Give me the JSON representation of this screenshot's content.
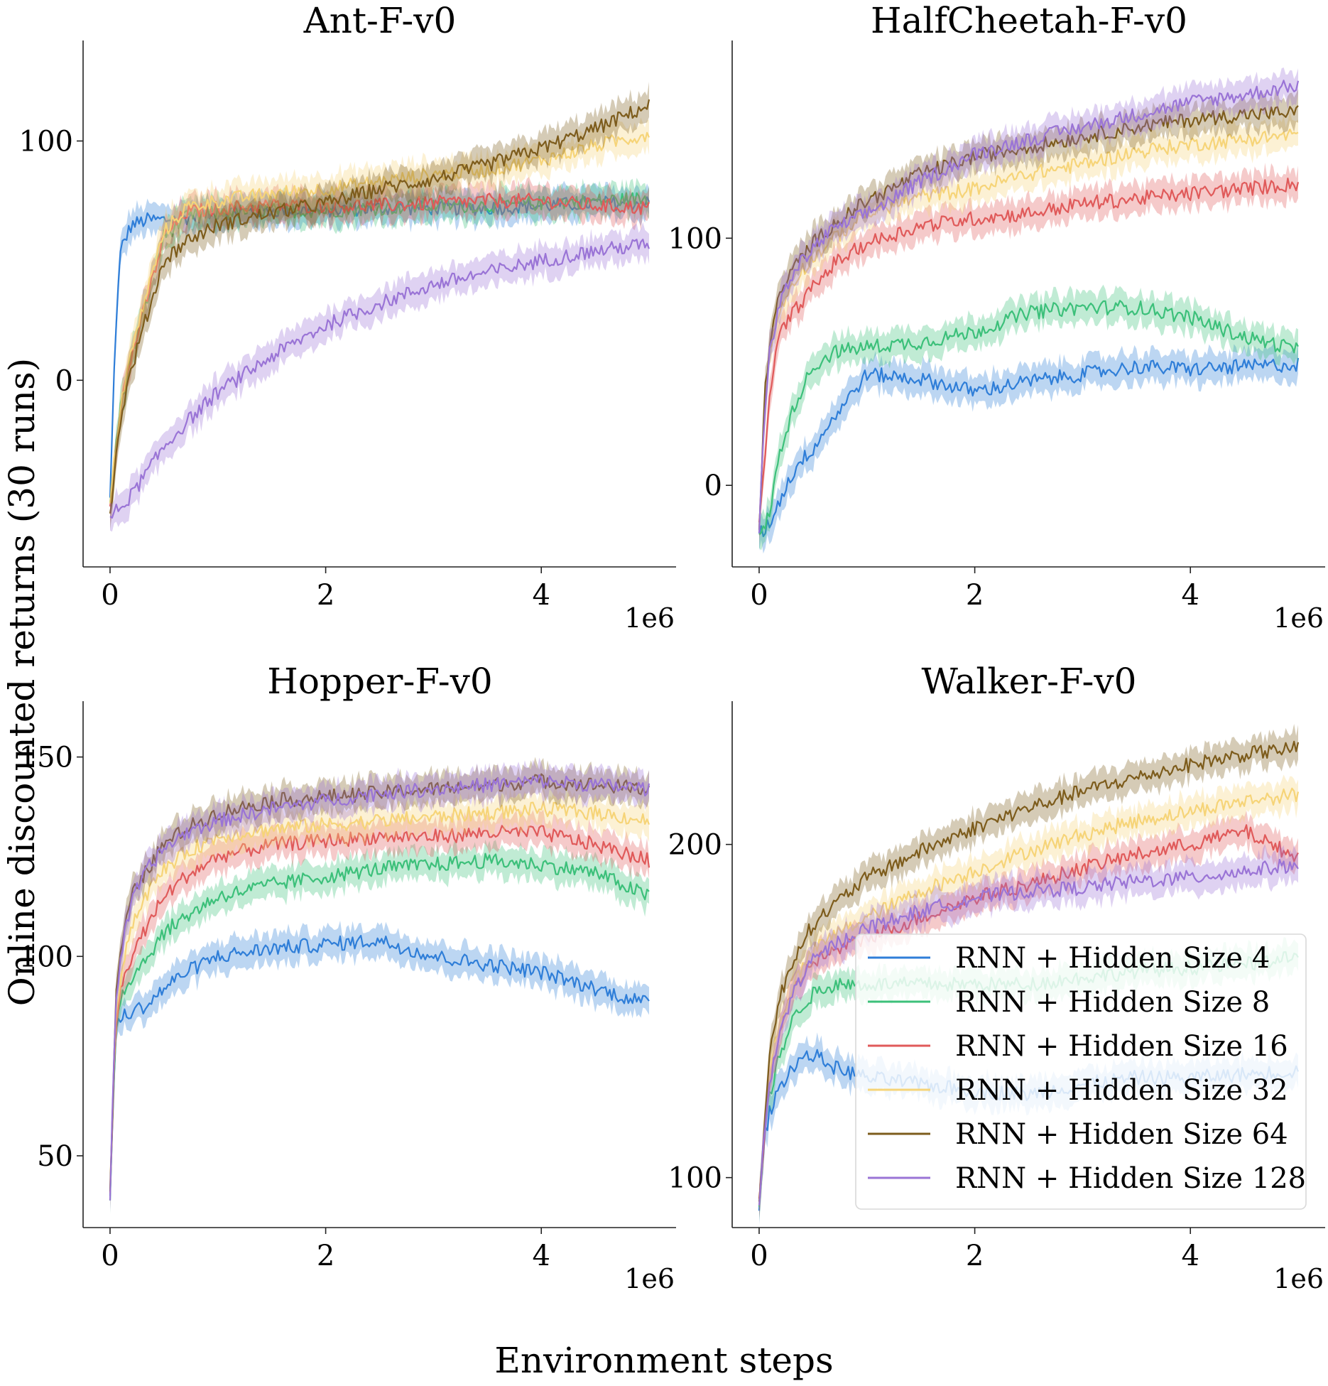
{
  "figure": {
    "xlabel": "Environment steps",
    "ylabel": "Online discounted returns (30 runs)"
  },
  "series_styles": [
    {
      "name": "RNN + Hidden Size 4",
      "color": "#2f7ed8"
    },
    {
      "name": "RNN + Hidden Size 8",
      "color": "#3cc07a"
    },
    {
      "name": "RNN + Hidden Size 16",
      "color": "#e05a5a"
    },
    {
      "name": "RNN + Hidden Size 32",
      "color": "#f6d478"
    },
    {
      "name": "RNN + Hidden Size 64",
      "color": "#7d5c1c"
    },
    {
      "name": "RNN + Hidden Size 128",
      "color": "#9a74d6"
    }
  ],
  "chart_data": [
    {
      "type": "line",
      "title": "Ant-F-v0",
      "xlabel": "",
      "ylabel": "",
      "x_multiplier_label": "1e6",
      "xlim": [
        -0.25,
        5.25
      ],
      "ylim": [
        -78,
        142
      ],
      "xticks": [
        0,
        2,
        4
      ],
      "yticks": [
        0,
        100
      ],
      "x": [
        0,
        0.05,
        0.1,
        0.2,
        0.35,
        0.5,
        0.7,
        1,
        1.5,
        2,
        2.5,
        3,
        3.5,
        4,
        4.5,
        5
      ],
      "series": [
        {
          "name": "RNN + Hidden Size 4",
          "values": [
            -50,
            20,
            55,
            65,
            67,
            67,
            68,
            70,
            71,
            71,
            72,
            72,
            72,
            73,
            74,
            74
          ]
        },
        {
          "name": "RNN + Hidden Size 8",
          "values": [
            -52,
            -30,
            -10,
            10,
            35,
            60,
            68,
            70,
            71,
            71,
            72,
            73,
            73,
            74,
            75,
            76
          ]
        },
        {
          "name": "RNN + Hidden Size 16",
          "values": [
            -52,
            -30,
            -10,
            10,
            35,
            60,
            70,
            72,
            73,
            73,
            73,
            74,
            75,
            75,
            73,
            72
          ]
        },
        {
          "name": "RNN + Hidden Size 32",
          "values": [
            -52,
            -30,
            -10,
            12,
            38,
            62,
            72,
            75,
            78,
            80,
            83,
            86,
            88,
            92,
            98,
            103
          ]
        },
        {
          "name": "RNN + Hidden Size 64",
          "values": [
            -55,
            -35,
            -15,
            5,
            28,
            50,
            58,
            65,
            70,
            74,
            80,
            84,
            90,
            97,
            105,
            115
          ]
        },
        {
          "name": "RNN + Hidden Size 128",
          "values": [
            -58,
            -55,
            -53,
            -48,
            -38,
            -28,
            -18,
            -5,
            10,
            23,
            32,
            40,
            45,
            50,
            54,
            57
          ]
        }
      ]
    },
    {
      "type": "line",
      "title": "HalfCheetah-F-v0",
      "xlabel": "",
      "ylabel": "",
      "x_multiplier_label": "1e6",
      "xlim": [
        -0.25,
        5.25
      ],
      "ylim": [
        -33,
        180
      ],
      "xticks": [
        0,
        2,
        4
      ],
      "yticks": [
        0,
        100
      ],
      "x": [
        0,
        0.05,
        0.1,
        0.2,
        0.35,
        0.5,
        0.7,
        1,
        1.5,
        2,
        2.5,
        3,
        3.5,
        4,
        4.5,
        5
      ],
      "series": [
        {
          "name": "RNN + Hidden Size 4",
          "values": [
            -20,
            -18,
            -15,
            -5,
            8,
            15,
            28,
            45,
            43,
            38,
            42,
            45,
            48,
            47,
            48,
            49
          ]
        },
        {
          "name": "RNN + Hidden Size 8",
          "values": [
            -20,
            -18,
            -10,
            15,
            35,
            48,
            54,
            56,
            58,
            62,
            70,
            72,
            72,
            68,
            60,
            55
          ]
        },
        {
          "name": "RNN + Hidden Size 16",
          "values": [
            -18,
            10,
            40,
            62,
            72,
            80,
            90,
            98,
            105,
            108,
            110,
            114,
            116,
            118,
            120,
            122
          ]
        },
        {
          "name": "RNN + Hidden Size 32",
          "values": [
            -18,
            30,
            55,
            72,
            85,
            92,
            100,
            110,
            117,
            120,
            126,
            130,
            135,
            138,
            140,
            142
          ]
        },
        {
          "name": "RNN + Hidden Size 64",
          "values": [
            -18,
            35,
            60,
            78,
            90,
            98,
            106,
            115,
            126,
            133,
            137,
            141,
            145,
            148,
            150,
            151
          ]
        },
        {
          "name": "RNN + Hidden Size 128",
          "values": [
            -18,
            30,
            55,
            75,
            88,
            96,
            104,
            110,
            123,
            134,
            140,
            145,
            150,
            155,
            158,
            162
          ]
        }
      ]
    },
    {
      "type": "line",
      "title": "Hopper-F-v0",
      "xlabel": "",
      "ylabel": "",
      "x_multiplier_label": "1e6",
      "xlim": [
        -0.25,
        5.25
      ],
      "ylim": [
        32,
        164
      ],
      "xticks": [
        0,
        2,
        4
      ],
      "yticks": [
        50,
        100,
        150
      ],
      "x": [
        0,
        0.05,
        0.1,
        0.2,
        0.35,
        0.5,
        0.7,
        1,
        1.5,
        2,
        2.5,
        3,
        3.5,
        4,
        4.5,
        5
      ],
      "series": [
        {
          "name": "RNN + Hidden Size 4",
          "values": [
            40,
            80,
            85,
            86,
            88,
            92,
            96,
            100,
            102,
            103,
            104,
            100,
            98,
            96,
            92,
            88
          ]
        },
        {
          "name": "RNN + Hidden Size 8",
          "values": [
            40,
            82,
            90,
            95,
            100,
            106,
            110,
            115,
            118,
            120,
            122,
            123,
            124,
            123,
            121,
            115
          ]
        },
        {
          "name": "RNN + Hidden Size 16",
          "values": [
            40,
            82,
            92,
            100,
            108,
            115,
            120,
            125,
            128,
            129,
            130,
            130,
            131,
            131,
            128,
            124
          ]
        },
        {
          "name": "RNN + Hidden Size 32",
          "values": [
            40,
            85,
            96,
            108,
            116,
            122,
            126,
            130,
            132,
            133,
            134,
            135,
            136,
            137,
            136,
            134
          ]
        },
        {
          "name": "RNN + Hidden Size 64",
          "values": [
            40,
            88,
            102,
            115,
            122,
            128,
            132,
            136,
            139,
            140,
            141,
            142,
            143,
            144,
            143,
            142
          ]
        },
        {
          "name": "RNN + Hidden Size 128",
          "values": [
            40,
            88,
            100,
            114,
            122,
            127,
            131,
            134,
            137,
            139,
            141,
            142,
            143,
            144,
            143,
            142
          ]
        }
      ]
    },
    {
      "type": "line",
      "title": "Walker-F-v0",
      "xlabel": "",
      "ylabel": "",
      "x_multiplier_label": "1e6",
      "xlim": [
        -0.25,
        5.25
      ],
      "ylim": [
        85,
        243
      ],
      "xticks": [
        0,
        2,
        4
      ],
      "yticks": [
        100,
        200
      ],
      "legend": {
        "placement": "bottom-right"
      },
      "x": [
        0,
        0.05,
        0.1,
        0.2,
        0.35,
        0.5,
        0.7,
        1,
        1.5,
        2,
        2.5,
        3,
        3.5,
        4,
        4.5,
        5
      ],
      "series": [
        {
          "name": "RNN + Hidden Size 4",
          "values": [
            92,
            112,
            120,
            128,
            135,
            137,
            133,
            130,
            128,
            126,
            125,
            128,
            130,
            130,
            131,
            132
          ]
        },
        {
          "name": "RNN + Hidden Size 8",
          "values": [
            92,
            114,
            125,
            138,
            150,
            155,
            158,
            158,
            158,
            158,
            158,
            160,
            162,
            163,
            164,
            166
          ]
        },
        {
          "name": "RNN + Hidden Size 16",
          "values": [
            92,
            115,
            130,
            145,
            158,
            165,
            168,
            172,
            178,
            184,
            188,
            193,
            197,
            200,
            204,
            196
          ]
        },
        {
          "name": "RNN + Hidden Size 32",
          "values": [
            92,
            116,
            132,
            148,
            160,
            168,
            173,
            178,
            186,
            192,
            198,
            203,
            207,
            210,
            213,
            215
          ]
        },
        {
          "name": "RNN + Hidden Size 64",
          "values": [
            92,
            118,
            138,
            155,
            168,
            176,
            182,
            190,
            198,
            205,
            211,
            216,
            220,
            224,
            227,
            229
          ]
        },
        {
          "name": "RNN + Hidden Size 128",
          "values": [
            92,
            114,
            128,
            145,
            158,
            165,
            170,
            175,
            180,
            184,
            186,
            187,
            189,
            190,
            192,
            194
          ]
        }
      ]
    }
  ]
}
